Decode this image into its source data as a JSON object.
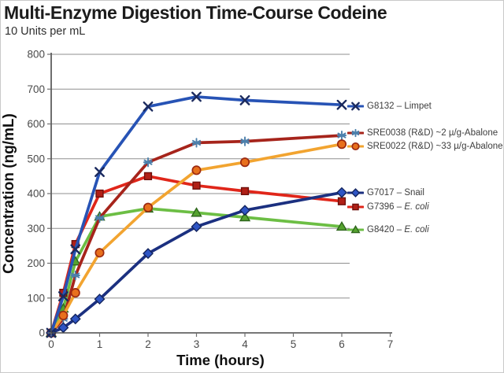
{
  "title": "Multi-Enzyme Digestion Time-Course Codeine",
  "subtitle": "10 Units per mL",
  "chart_data": {
    "type": "line",
    "title": "Multi-Enzyme Digestion Time-Course Codeine",
    "subtitle": "10 Units per mL",
    "xlabel": "Time (hours)",
    "ylabel": "Concentration (ng/mL)",
    "xlim": [
      0,
      7
    ],
    "ylim": [
      0,
      800
    ],
    "x_ticks": [
      0,
      1,
      2,
      3,
      4,
      5,
      6,
      7
    ],
    "y_ticks": [
      0,
      100,
      200,
      300,
      400,
      500,
      600,
      700,
      800
    ],
    "grid": "horizontal",
    "grid_color": "#8f8f8f",
    "axis_color": "#4a4a4a",
    "legend_position": "right",
    "x": [
      0,
      0.25,
      0.5,
      1,
      2,
      3,
      4,
      6
    ],
    "series": [
      {
        "name": "G8420 – E. coli",
        "label_prefix": "G8420 – ",
        "label_italic": "E. coli",
        "marker": "triangle",
        "line_color": "#6CBE44",
        "marker_fill": "#55A22F",
        "marker_stroke": "#2E661C",
        "values": [
          0,
          70,
          205,
          334,
          357,
          345,
          332,
          305
        ],
        "legend_y": 291
      },
      {
        "name": "G7396 – E. coli",
        "label_prefix": "G7396 – ",
        "label_italic": "E. coli",
        "marker": "square",
        "line_color": "#E0261A",
        "marker_fill": "#B01F16",
        "marker_stroke": "#6E100C",
        "values": [
          0,
          115,
          255,
          400,
          450,
          423,
          407,
          378
        ],
        "legend_y": 262
      },
      {
        "name": "SRE0038 (R&D) ~2 µ/g-Abalone",
        "label_prefix": "SRE0038 (R&D) ~2 µ/g-Abalone",
        "label_italic": "",
        "marker": "asterisk",
        "line_color": "#A6241B",
        "marker_fill": "#4C80AC",
        "marker_stroke": "#4C80AC",
        "values": [
          0,
          40,
          165,
          330,
          490,
          546,
          550,
          567
        ],
        "legend_y": 168
      },
      {
        "name": "SRE0022 (R&D) ~33 µ/g-Abalone",
        "label_prefix": "SRE0022 (R&D) ~33 µ/g-Abalone",
        "label_italic": "",
        "marker": "circle",
        "line_color": "#F2A430",
        "marker_fill": "#E8701D",
        "marker_stroke": "#9C2A12",
        "values": [
          0,
          50,
          115,
          230,
          360,
          467,
          490,
          542
        ],
        "legend_y": 185
      },
      {
        "name": "G7017 – Snail",
        "label_prefix": "G7017 – Snail",
        "label_italic": "",
        "marker": "diamond",
        "line_color": "#1B3080",
        "marker_fill": "#2E55C4",
        "marker_stroke": "#14255E",
        "values": [
          0,
          15,
          40,
          97,
          228,
          305,
          352,
          403
        ],
        "legend_y": 244
      },
      {
        "name": "G8132 – Limpet",
        "label_prefix": "G8132 – Limpet",
        "label_italic": "",
        "marker": "x",
        "line_color": "#2753B5",
        "marker_fill": "#1B2A5E",
        "marker_stroke": "#1B2A5E",
        "values": [
          0,
          105,
          240,
          462,
          650,
          678,
          668,
          655
        ],
        "legend_y": 134
      }
    ]
  }
}
